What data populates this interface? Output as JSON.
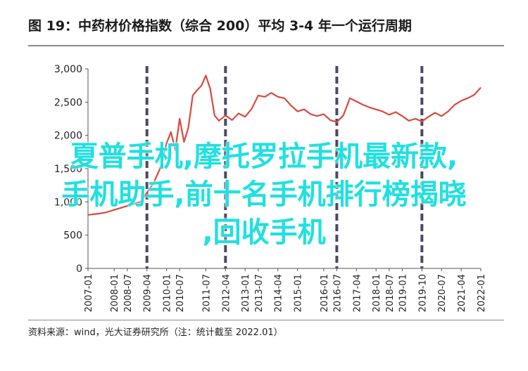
{
  "header": {
    "title": "图 19：中药材价格指数（综合 200）平均 3-4 年一个运行周期"
  },
  "footer": {
    "source": "资料来源：wind，光大证券研究所（注：统计截至 2022.01）"
  },
  "overlay": {
    "line1": "夏普手机,摩托罗拉手机最新款,",
    "line2": "手机助手,前十名手机排行榜揭晓",
    "line3": ",回收手机",
    "color": "#20e0e0"
  },
  "chart_data": {
    "type": "line",
    "ylim": [
      0,
      3000
    ],
    "yticks": [
      0,
      500,
      1000,
      1500,
      2000,
      2500,
      3000
    ],
    "ytick_labels": [
      "0",
      "500",
      "1,000",
      "1,500",
      "2,000",
      "2,500",
      "3,000"
    ],
    "xticks": [
      "2007-01",
      "2008-01",
      "2008-07",
      "2009-04",
      "2010-01",
      "2010-07",
      "2011-07",
      "2012-04",
      "2013-01",
      "2013-07",
      "2014-04",
      "2015-01",
      "2016-01",
      "2016-07",
      "2017-04",
      "2018-01",
      "2018-07",
      "2019-01",
      "2019-10",
      "2020-07",
      "2021-04",
      "2022-01"
    ],
    "xlim": [
      "2007-01",
      "2022-01"
    ],
    "cycle_markers": [
      "2009-04",
      "2012-04",
      "2016-07",
      "2019-10"
    ],
    "line_color": "#d94a3c",
    "marker_color": "#4a4a66",
    "series": [
      {
        "points": [
          [
            "2007-01",
            805
          ],
          [
            "2007-05",
            820
          ],
          [
            "2007-09",
            840
          ],
          [
            "2008-01",
            880
          ],
          [
            "2008-05",
            920
          ],
          [
            "2008-09",
            960
          ],
          [
            "2009-01",
            1000
          ],
          [
            "2009-04",
            1140
          ],
          [
            "2009-07",
            1280
          ],
          [
            "2009-10",
            1500
          ],
          [
            "2010-01",
            1880
          ],
          [
            "2010-03",
            2050
          ],
          [
            "2010-05",
            1780
          ],
          [
            "2010-07",
            2250
          ],
          [
            "2010-09",
            1900
          ],
          [
            "2010-11",
            2120
          ],
          [
            "2011-01",
            2600
          ],
          [
            "2011-03",
            2680
          ],
          [
            "2011-05",
            2750
          ],
          [
            "2011-07",
            2900
          ],
          [
            "2011-09",
            2700
          ],
          [
            "2011-11",
            2300
          ],
          [
            "2012-01",
            2220
          ],
          [
            "2012-04",
            2300
          ],
          [
            "2012-07",
            2230
          ],
          [
            "2012-10",
            2330
          ],
          [
            "2013-01",
            2280
          ],
          [
            "2013-04",
            2400
          ],
          [
            "2013-07",
            2600
          ],
          [
            "2013-10",
            2580
          ],
          [
            "2014-01",
            2640
          ],
          [
            "2014-04",
            2580
          ],
          [
            "2014-07",
            2560
          ],
          [
            "2014-10",
            2450
          ],
          [
            "2015-01",
            2360
          ],
          [
            "2015-04",
            2390
          ],
          [
            "2015-07",
            2320
          ],
          [
            "2015-10",
            2290
          ],
          [
            "2016-01",
            2320
          ],
          [
            "2016-04",
            2230
          ],
          [
            "2016-07",
            2200
          ],
          [
            "2016-10",
            2300
          ],
          [
            "2017-01",
            2560
          ],
          [
            "2017-04",
            2510
          ],
          [
            "2017-07",
            2460
          ],
          [
            "2017-10",
            2420
          ],
          [
            "2018-01",
            2390
          ],
          [
            "2018-04",
            2360
          ],
          [
            "2018-07",
            2310
          ],
          [
            "2018-10",
            2350
          ],
          [
            "2019-01",
            2290
          ],
          [
            "2019-04",
            2220
          ],
          [
            "2019-07",
            2250
          ],
          [
            "2019-10",
            2210
          ],
          [
            "2020-01",
            2280
          ],
          [
            "2020-04",
            2340
          ],
          [
            "2020-07",
            2290
          ],
          [
            "2020-10",
            2360
          ],
          [
            "2021-01",
            2460
          ],
          [
            "2021-04",
            2520
          ],
          [
            "2021-07",
            2560
          ],
          [
            "2021-10",
            2610
          ],
          [
            "2022-01",
            2720
          ]
        ]
      }
    ]
  }
}
